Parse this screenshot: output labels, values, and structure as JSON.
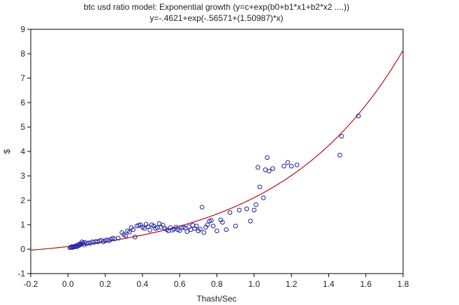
{
  "chart_data": {
    "type": "scatter",
    "title": "btc usd ratio model: Exponential growth (y=c+exp(b0+b1*x1+b2*x2 ....))",
    "subtitle": "y=-.4621+exp(-.56571+(1.50987)*x)",
    "xlabel": "Thash/Sec",
    "ylabel": "$",
    "xlim": [
      -0.2,
      1.8
    ],
    "ylim": [
      -1,
      9
    ],
    "x_ticks": [
      "-0.2",
      "0.0",
      "0.2",
      "0.4",
      "0.6",
      "0.8",
      "1.0",
      "1.2",
      "1.4",
      "1.6",
      "1.8"
    ],
    "y_ticks": [
      "-1",
      "0",
      "1",
      "2",
      "3",
      "4",
      "5",
      "6",
      "7",
      "8",
      "9"
    ],
    "grid": false,
    "legend": "none",
    "colors": {
      "points": "#1f1fa0",
      "fit_line": "#b01010",
      "axes": "#000000"
    },
    "fit": {
      "c": -0.4621,
      "b0": -0.56571,
      "b1": 1.50987
    },
    "points": [
      [
        0.01,
        0.06
      ],
      [
        0.015,
        0.08
      ],
      [
        0.02,
        0.1
      ],
      [
        0.025,
        0.07
      ],
      [
        0.03,
        0.09
      ],
      [
        0.035,
        0.12
      ],
      [
        0.04,
        0.1
      ],
      [
        0.045,
        0.14
      ],
      [
        0.05,
        0.11
      ],
      [
        0.055,
        0.18
      ],
      [
        0.06,
        0.15
      ],
      [
        0.065,
        0.22
      ],
      [
        0.07,
        0.2
      ],
      [
        0.075,
        0.3
      ],
      [
        0.08,
        0.25
      ],
      [
        0.085,
        0.18
      ],
      [
        0.09,
        0.28
      ],
      [
        0.1,
        0.22
      ],
      [
        0.11,
        0.26
      ],
      [
        0.12,
        0.24
      ],
      [
        0.13,
        0.3
      ],
      [
        0.14,
        0.28
      ],
      [
        0.15,
        0.32
      ],
      [
        0.16,
        0.3
      ],
      [
        0.17,
        0.34
      ],
      [
        0.18,
        0.36
      ],
      [
        0.19,
        0.3
      ],
      [
        0.2,
        0.35
      ],
      [
        0.21,
        0.38
      ],
      [
        0.22,
        0.34
      ],
      [
        0.23,
        0.4
      ],
      [
        0.24,
        0.45
      ],
      [
        0.25,
        0.42
      ],
      [
        0.27,
        0.45
      ],
      [
        0.29,
        0.68
      ],
      [
        0.3,
        0.6
      ],
      [
        0.31,
        0.55
      ],
      [
        0.32,
        0.75
      ],
      [
        0.33,
        0.7
      ],
      [
        0.34,
        0.88
      ],
      [
        0.35,
        0.8
      ],
      [
        0.36,
        0.5
      ],
      [
        0.37,
        0.95
      ],
      [
        0.38,
        0.98
      ],
      [
        0.39,
        1.0
      ],
      [
        0.4,
        0.9
      ],
      [
        0.41,
        0.85
      ],
      [
        0.42,
        1.02
      ],
      [
        0.43,
        0.92
      ],
      [
        0.44,
        0.78
      ],
      [
        0.45,
        1.0
      ],
      [
        0.46,
        0.95
      ],
      [
        0.47,
        0.85
      ],
      [
        0.48,
        0.88
      ],
      [
        0.49,
        1.05
      ],
      [
        0.5,
        0.9
      ],
      [
        0.51,
        0.98
      ],
      [
        0.52,
        0.85
      ],
      [
        0.53,
        0.8
      ],
      [
        0.54,
        0.75
      ],
      [
        0.55,
        0.88
      ],
      [
        0.56,
        0.78
      ],
      [
        0.57,
        0.82
      ],
      [
        0.58,
        0.9
      ],
      [
        0.59,
        0.8
      ],
      [
        0.6,
        0.76
      ],
      [
        0.61,
        0.88
      ],
      [
        0.62,
        0.9
      ],
      [
        0.63,
        0.86
      ],
      [
        0.64,
        0.72
      ],
      [
        0.65,
        0.92
      ],
      [
        0.66,
        0.8
      ],
      [
        0.67,
        0.98
      ],
      [
        0.68,
        0.85
      ],
      [
        0.69,
        0.95
      ],
      [
        0.7,
        0.75
      ],
      [
        0.71,
        0.82
      ],
      [
        0.72,
        1.72
      ],
      [
        0.73,
        0.68
      ],
      [
        0.74,
        0.9
      ],
      [
        0.75,
        1.0
      ],
      [
        0.76,
        1.15
      ],
      [
        0.77,
        1.18
      ],
      [
        0.78,
        0.95
      ],
      [
        0.8,
        0.75
      ],
      [
        0.82,
        1.2
      ],
      [
        0.83,
        1.1
      ],
      [
        0.85,
        0.8
      ],
      [
        0.87,
        1.5
      ],
      [
        0.9,
        0.95
      ],
      [
        0.92,
        1.6
      ],
      [
        0.96,
        1.65
      ],
      [
        0.98,
        1.15
      ],
      [
        1.0,
        1.6
      ],
      [
        1.01,
        1.82
      ],
      [
        1.02,
        3.35
      ],
      [
        1.03,
        2.55
      ],
      [
        1.05,
        2.1
      ],
      [
        1.06,
        3.25
      ],
      [
        1.07,
        3.75
      ],
      [
        1.08,
        3.2
      ],
      [
        1.1,
        3.3
      ],
      [
        1.16,
        3.4
      ],
      [
        1.18,
        3.55
      ],
      [
        1.2,
        3.4
      ],
      [
        1.23,
        3.45
      ],
      [
        1.46,
        3.85
      ],
      [
        1.47,
        4.62
      ],
      [
        1.56,
        5.45
      ]
    ]
  }
}
